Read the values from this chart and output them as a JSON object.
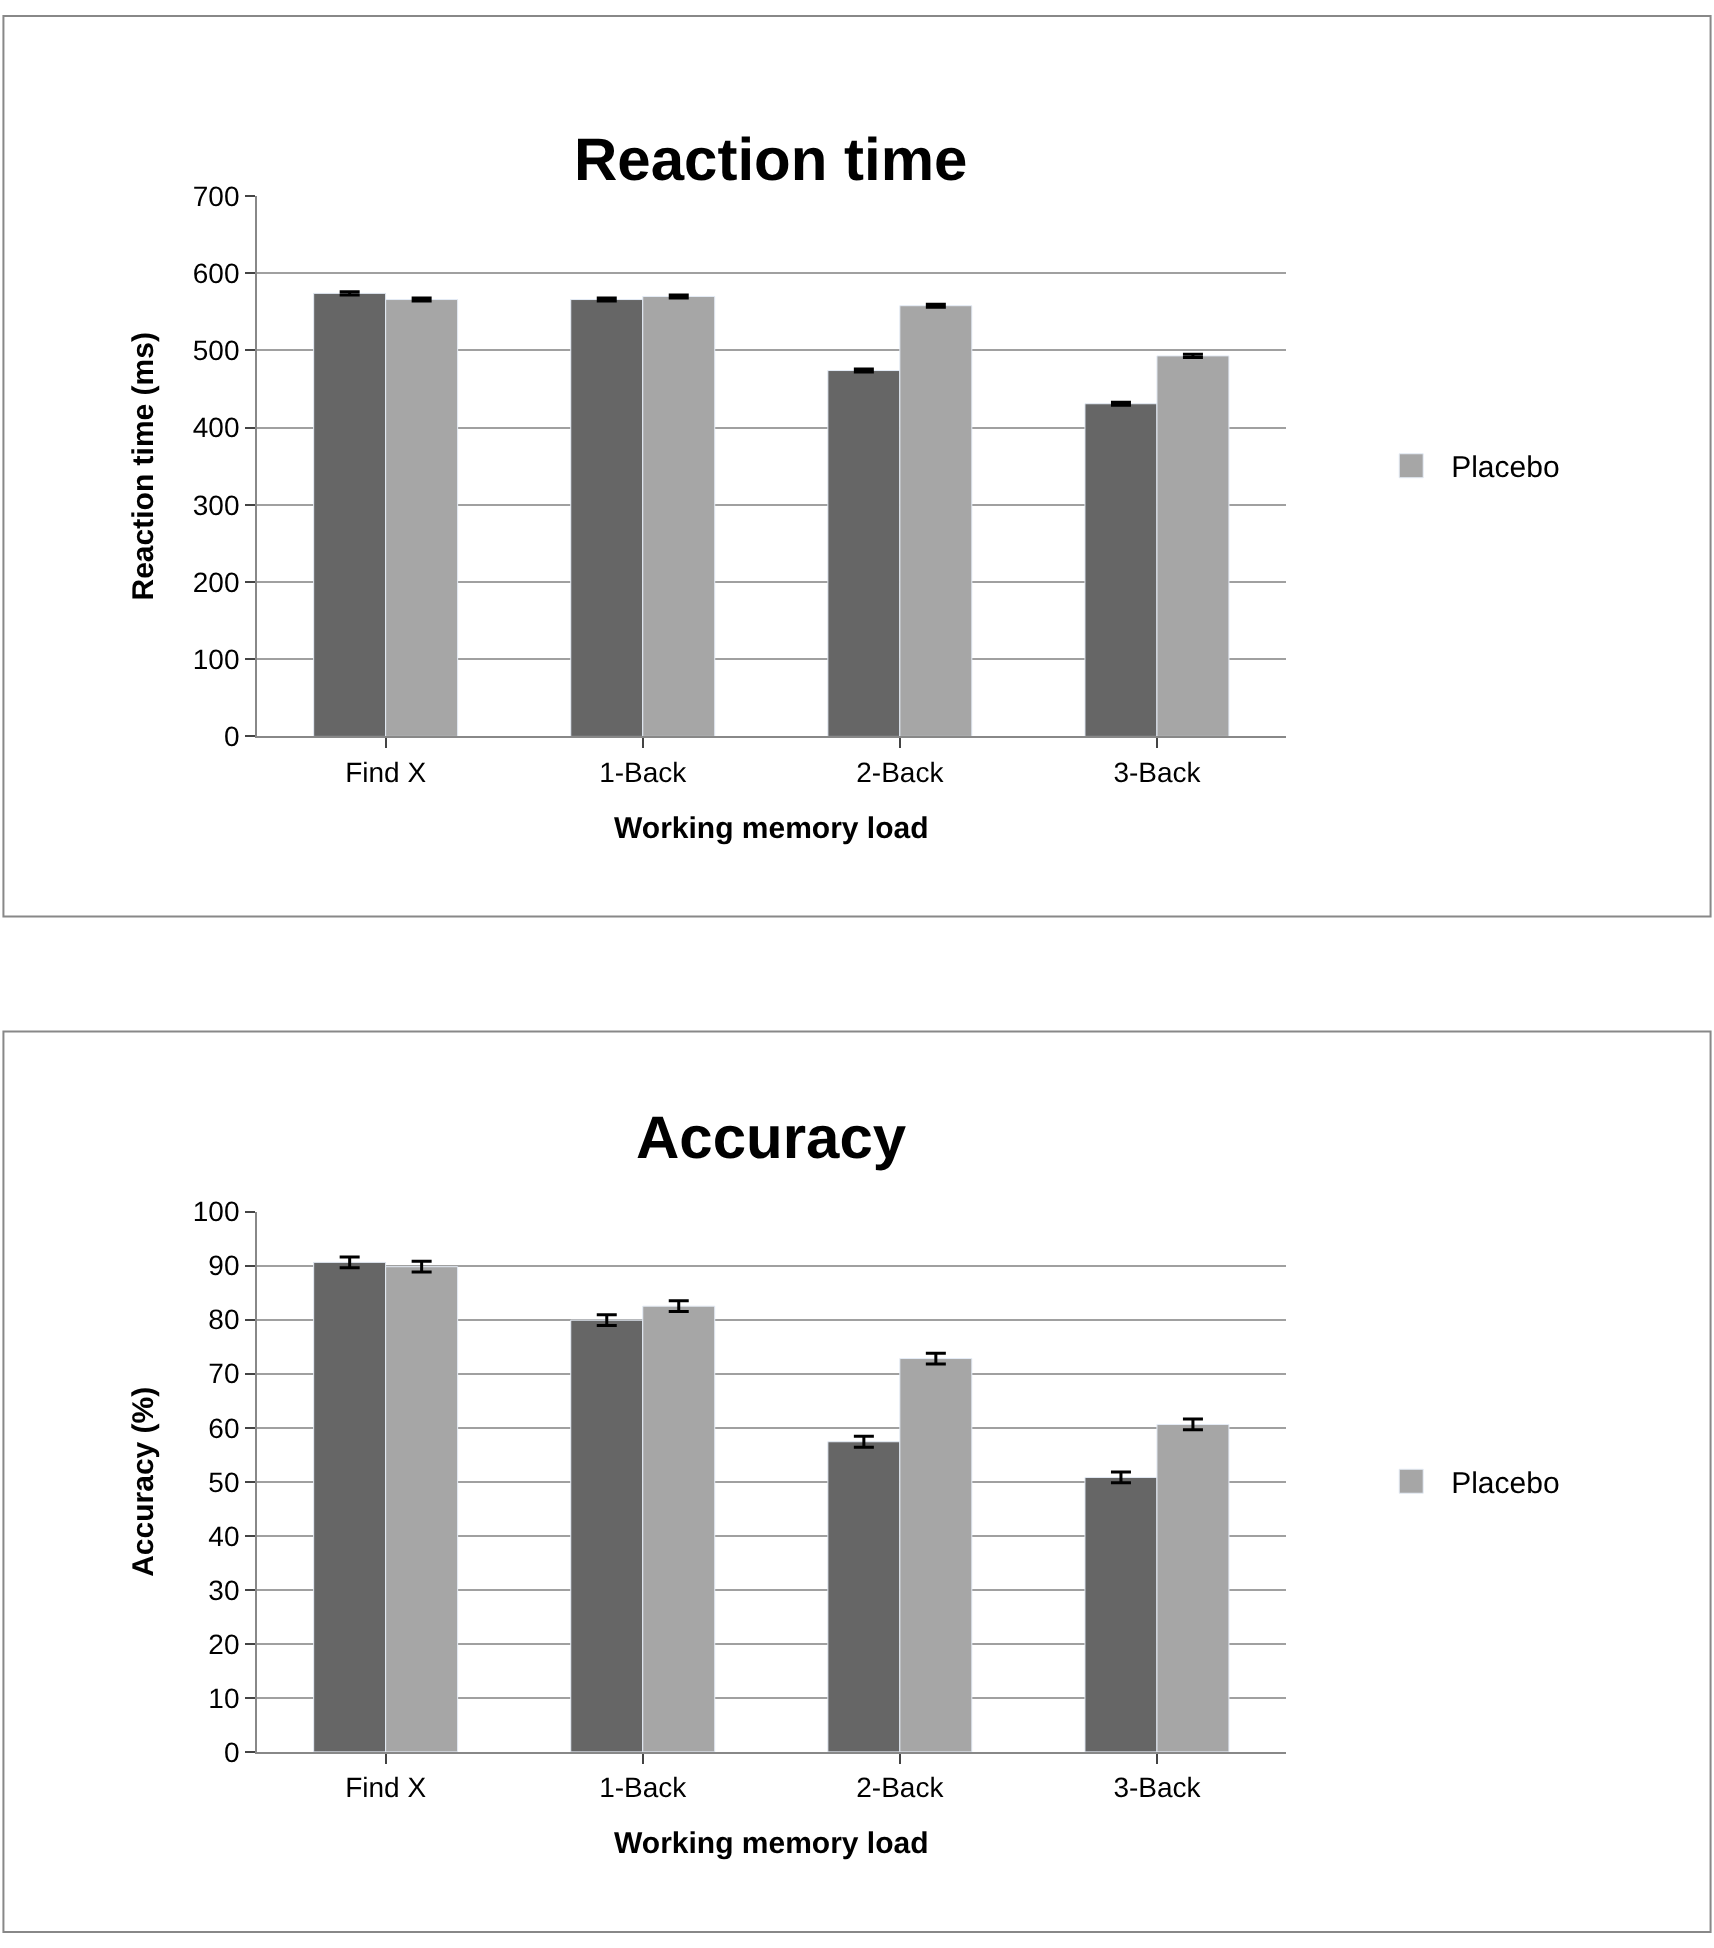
{
  "chart_data": [
    {
      "type": "bar",
      "title": "Reaction time",
      "xlabel": "Working memory load",
      "ylabel": "Reaction time (ms)",
      "categories": [
        "Find X",
        "1-Back",
        "2-Back",
        "3-Back"
      ],
      "series": [
        {
          "color": "#666666",
          "values": [
            574,
            566,
            474,
            431
          ],
          "errors": [
            2,
            2,
            2,
            2
          ]
        },
        {
          "name": "Placebo",
          "color": "#a6a6a6",
          "values": [
            566,
            570,
            558,
            493
          ],
          "errors": [
            2,
            2,
            2,
            2
          ]
        }
      ],
      "ylim": [
        0,
        700
      ],
      "yticks": [
        0,
        100,
        200,
        300,
        400,
        500,
        600,
        700
      ],
      "grid": "y",
      "legend": "right"
    },
    {
      "type": "bar",
      "title": "Accuracy",
      "xlabel": "Working memory load",
      "ylabel": "Accuracy (%)",
      "categories": [
        "Find X",
        "1-Back",
        "2-Back",
        "3-Back"
      ],
      "series": [
        {
          "color": "#666666",
          "values": [
            90.6,
            79.9,
            57.4,
            50.8
          ],
          "errors": [
            1,
            1,
            1,
            1
          ]
        },
        {
          "name": "Placebo",
          "color": "#a6a6a6",
          "values": [
            89.8,
            82.5,
            72.8,
            60.6
          ],
          "errors": [
            1,
            1,
            1,
            1
          ]
        }
      ],
      "ylim": [
        0,
        100
      ],
      "yticks": [
        0,
        10,
        20,
        30,
        40,
        50,
        60,
        70,
        80,
        90,
        100
      ],
      "grid": "y",
      "legend": "right"
    }
  ]
}
